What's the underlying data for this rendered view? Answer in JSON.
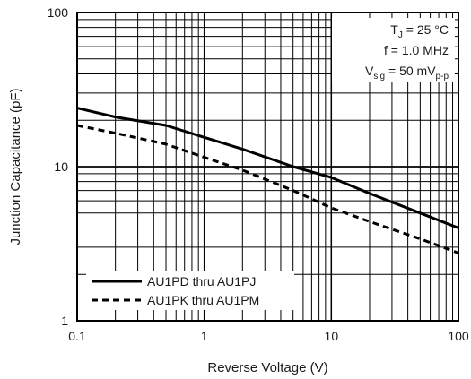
{
  "chart_data": {
    "type": "line",
    "xlabel": "Reverse Voltage (V)",
    "ylabel": "Junction Capacitance (pF)",
    "xscale": "log",
    "yscale": "log",
    "xlim": [
      0.1,
      100
    ],
    "ylim": [
      1,
      100
    ],
    "xticks": [
      0.1,
      1,
      10,
      100
    ],
    "xtick_labels": [
      "0.1",
      "1",
      "10",
      "100"
    ],
    "yticks": [
      1,
      10,
      100
    ],
    "ytick_labels": [
      "1",
      "10",
      "100"
    ],
    "grid": true,
    "legend_position": "bottom-left",
    "annotation": {
      "line1_main": "T",
      "line1_sub": "J",
      "line1_rest": " = 25 °C",
      "line2": "f = 1.0 MHz",
      "line3_main": "V",
      "line3_sub": "sig",
      "line3_mid": " = 50 mV",
      "line3_sub2": "p-p"
    },
    "series": [
      {
        "name": "AU1PD thru AU1PJ",
        "style": "solid",
        "x": [
          0.1,
          0.2,
          0.5,
          1,
          2,
          5,
          10,
          20,
          50,
          100
        ],
        "y": [
          24,
          21,
          18.5,
          15.5,
          13,
          10,
          8.5,
          6.7,
          5,
          4
        ]
      },
      {
        "name": "AU1PK thru AU1PM",
        "style": "dashed",
        "x": [
          0.1,
          0.2,
          0.5,
          1,
          2,
          5,
          10,
          20,
          50,
          100
        ],
        "y": [
          18.5,
          16.5,
          14,
          11.5,
          9.5,
          7,
          5.4,
          4.4,
          3.4,
          2.75
        ]
      }
    ]
  }
}
